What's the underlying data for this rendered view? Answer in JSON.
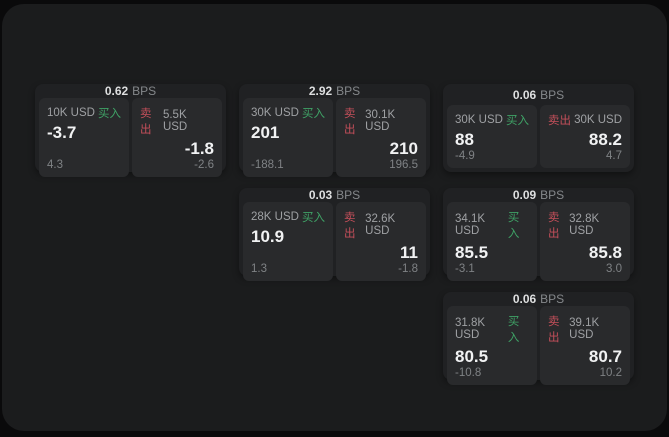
{
  "labels": {
    "bps": "BPS",
    "buy": "买入",
    "sell": "卖出"
  },
  "colors": {
    "background": "#0a0a0b",
    "panel_bg": "#1b1c1d",
    "card_bg": "#202123",
    "tile_bg": "#292a2c",
    "buy_green": "#3fa266",
    "sell_red": "#c44f5a",
    "price_text": "#f1f2f3",
    "muted_text": "#7f8285"
  },
  "cards": [
    {
      "spread": "0.62",
      "buy": {
        "notional": "10K USD",
        "price": "-3.7",
        "delta": "4.3"
      },
      "sell": {
        "notional": "5.5K USD",
        "price": "-1.8",
        "delta": "-2.6"
      }
    },
    {
      "spread": "2.92",
      "buy": {
        "notional": "30K USD",
        "price": "201",
        "delta": "-188.1"
      },
      "sell": {
        "notional": "30.1K USD",
        "price": "210",
        "delta": "196.5"
      }
    },
    {
      "spread": "0.06",
      "buy": {
        "notional": "30K USD",
        "price": "88",
        "delta": "-4.9"
      },
      "sell": {
        "notional": "30K USD",
        "price": "88.2",
        "delta": "4.7"
      }
    },
    {
      "spread": "0.03",
      "buy": {
        "notional": "28K USD",
        "price": "10.9",
        "delta": "1.3"
      },
      "sell": {
        "notional": "32.6K USD",
        "price": "11",
        "delta": "-1.8"
      }
    },
    {
      "spread": "0.09",
      "buy": {
        "notional": "34.1K USD",
        "price": "85.5",
        "delta": "-3.1"
      },
      "sell": {
        "notional": "32.8K USD",
        "price": "85.8",
        "delta": "3.0"
      }
    },
    {
      "spread": "0.06",
      "buy": {
        "notional": "31.8K USD",
        "price": "80.5",
        "delta": "-10.8"
      },
      "sell": {
        "notional": "39.1K USD",
        "price": "80.7",
        "delta": "10.2"
      }
    }
  ]
}
